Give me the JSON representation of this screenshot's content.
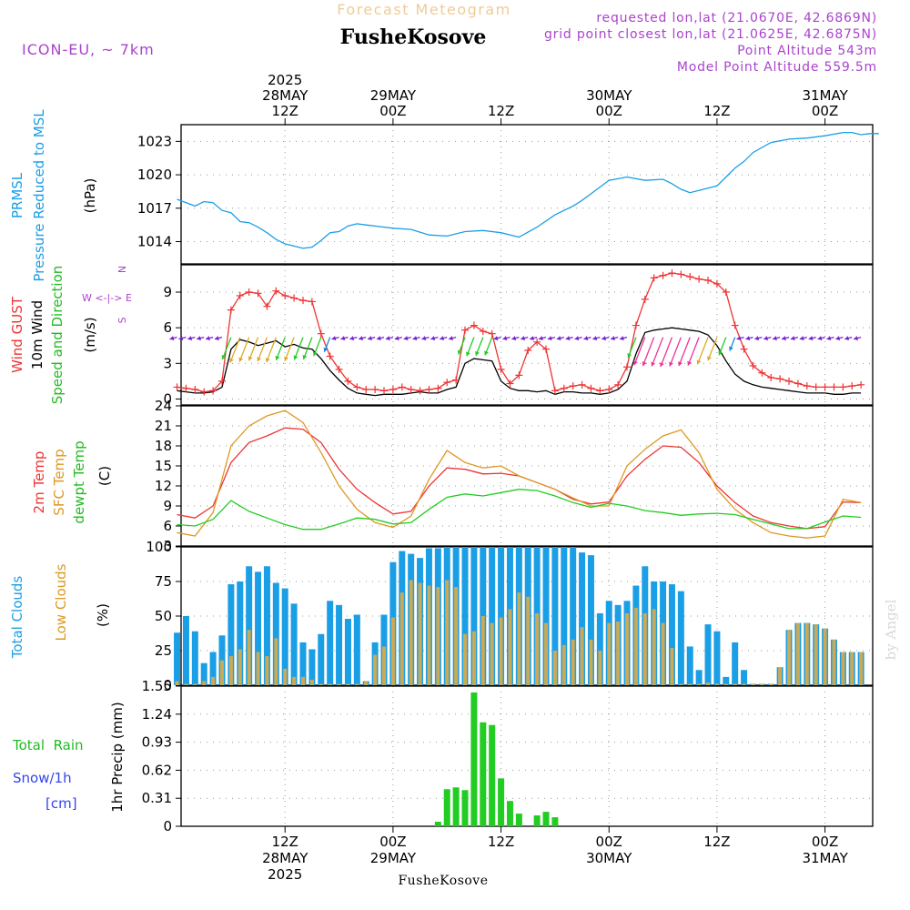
{
  "header": {
    "title": "Forecast Meteogram",
    "location": "FusheKosove",
    "model": "ICON-EU, ~ 7km",
    "requested": "requested lon,lat (21.0670E, 42.6869N)",
    "closest": "grid point closest lon,lat (21.0625E, 42.6875N)",
    "altitude": "Point Altitude 543m",
    "model_altitude": "Model Point Altitude 559.5m",
    "footer": "FusheKosove",
    "credit": "by Angel",
    "compass": [
      "N",
      "W <-|-> E",
      "S"
    ]
  },
  "colors": {
    "pressure": "#1a9ee6",
    "gust": "#ee3333",
    "wind": "#000000",
    "wind_label": "#22bb22",
    "temp": "#ee3333",
    "sfc_temp": "#dd9922",
    "dewpt": "#22cc22",
    "total_clouds": "#1a9ee6",
    "low_clouds": "#ccaa55",
    "rain": "#22cc22",
    "snow": "#3344ee",
    "meta": "#aa44cc",
    "title_faint": "#eecc99",
    "arrow_low": "#7722cc",
    "arrow_mid": "#22cc22",
    "arrow_high": "#ee3399",
    "arrow_orange": "#ddaa22",
    "arrow_blue": "#1a88dd"
  },
  "chart_data": [
    {
      "type": "line",
      "panel": "pressure",
      "ylabel_lines": [
        "PRMSL",
        "Pressure Reduced to MSL"
      ],
      "unit": "(hPa)",
      "yticks": [
        1014,
        1017,
        1020,
        1023
      ],
      "ylim": [
        1012,
        1024.5
      ],
      "x_hours": [
        0,
        2,
        3,
        4,
        5,
        6,
        7,
        8,
        9,
        10,
        11,
        12,
        13,
        14,
        15,
        16,
        17,
        18,
        19,
        20,
        21,
        22,
        24,
        26,
        28,
        30,
        32,
        34,
        36,
        38,
        40,
        42,
        44,
        45,
        46,
        47,
        48,
        50,
        52,
        54,
        55,
        56,
        57,
        58,
        60,
        61,
        62,
        63,
        64,
        66,
        68,
        70,
        72,
        74,
        75,
        76,
        77,
        78
      ],
      "series": [
        {
          "values": [
            1017.8,
            1017.2,
            1017.6,
            1017.5,
            1016.8,
            1016.6,
            1015.8,
            1015.7,
            1015.3,
            1014.8,
            1014.2,
            1013.8,
            1013.6,
            1013.4,
            1013.5,
            1014.1,
            1014.8,
            1014.9,
            1015.4,
            1015.6,
            1015.5,
            1015.4,
            1015.2,
            1015.1,
            1014.6,
            1014.5,
            1014.9,
            1015.0,
            1014.8,
            1014.4,
            1015.3,
            1016.4,
            1017.2,
            1017.7,
            1018.3,
            1018.9,
            1019.5,
            1019.8,
            1019.5,
            1019.6,
            1019.2,
            1018.7,
            1018.4,
            1018.6,
            1019.0,
            1019.8,
            1020.6,
            1021.2,
            1022.0,
            1022.9,
            1023.2,
            1023.3,
            1023.5,
            1023.8,
            1023.8,
            1023.6,
            1023.7,
            1023.7
          ]
        }
      ]
    },
    {
      "type": "line",
      "panel": "wind",
      "ylabel_lines": [
        "Wind GUST",
        "10m Wind",
        "Speed and Direction"
      ],
      "unit": "(m/s)",
      "yticks": [
        0,
        3,
        6,
        9
      ],
      "ylim": [
        -0.5,
        11.3
      ],
      "x_hours": [
        0,
        1,
        2,
        3,
        4,
        5,
        6,
        7,
        8,
        9,
        10,
        11,
        12,
        13,
        14,
        15,
        16,
        17,
        18,
        19,
        20,
        21,
        22,
        23,
        24,
        25,
        26,
        27,
        28,
        29,
        30,
        31,
        32,
        33,
        34,
        35,
        36,
        37,
        38,
        39,
        40,
        41,
        42,
        43,
        44,
        45,
        46,
        47,
        48,
        49,
        50,
        51,
        52,
        53,
        54,
        55,
        56,
        57,
        58,
        59,
        60,
        61,
        62,
        63,
        64,
        65,
        66,
        67,
        68,
        69,
        70,
        71,
        72,
        73,
        74,
        75,
        76
      ],
      "series": [
        {
          "name": "Wind GUST",
          "values": [
            1.0,
            0.9,
            0.8,
            0.6,
            0.7,
            1.5,
            7.5,
            8.7,
            9.0,
            8.9,
            7.8,
            9.1,
            8.7,
            8.5,
            8.3,
            8.2,
            5.5,
            3.6,
            2.5,
            1.5,
            1.0,
            0.8,
            0.8,
            0.7,
            0.8,
            1.0,
            0.8,
            0.7,
            0.8,
            0.9,
            1.4,
            1.6,
            5.8,
            6.2,
            5.7,
            5.5,
            2.5,
            1.3,
            2.0,
            4.1,
            4.8,
            4.2,
            0.7,
            0.9,
            1.1,
            1.2,
            0.9,
            0.7,
            0.8,
            1.2,
            2.7,
            6.2,
            8.4,
            10.2,
            10.4,
            10.6,
            10.5,
            10.3,
            10.1,
            10.0,
            9.7,
            9.0,
            6.2,
            4.2,
            2.8,
            2.2,
            1.8,
            1.7,
            1.5,
            1.3,
            1.1,
            1.0,
            1.0,
            1.0,
            1.0,
            1.1,
            1.2
          ]
        },
        {
          "name": "10m Wind",
          "values": [
            0.7,
            0.6,
            0.5,
            0.5,
            0.6,
            1.0,
            4.2,
            5.0,
            4.8,
            4.5,
            4.7,
            4.9,
            4.4,
            4.6,
            4.3,
            4.2,
            3.4,
            2.4,
            1.6,
            0.9,
            0.5,
            0.4,
            0.3,
            0.4,
            0.4,
            0.4,
            0.5,
            0.6,
            0.5,
            0.5,
            0.8,
            1.0,
            3.0,
            3.4,
            3.3,
            3.2,
            1.5,
            0.9,
            0.7,
            0.7,
            0.6,
            0.7,
            0.4,
            0.6,
            0.6,
            0.5,
            0.5,
            0.4,
            0.5,
            0.8,
            1.5,
            3.8,
            5.6,
            5.8,
            5.9,
            6.0,
            5.9,
            5.8,
            5.7,
            5.4,
            4.5,
            3.2,
            2.1,
            1.5,
            1.2,
            1.0,
            0.9,
            0.8,
            0.7,
            0.6,
            0.5,
            0.5,
            0.5,
            0.4,
            0.4,
            0.5,
            0.5
          ]
        }
      ]
    },
    {
      "type": "line",
      "panel": "temperature",
      "ylabel_lines": [
        "2m Temp",
        "SFC Temp",
        "dewpt Temp"
      ],
      "unit": "(C)",
      "yticks": [
        3,
        6,
        9,
        12,
        15,
        18,
        21,
        24
      ],
      "ylim": [
        3,
        24
      ],
      "x_hours": [
        0,
        2,
        4,
        6,
        8,
        10,
        12,
        14,
        16,
        18,
        20,
        22,
        24,
        26,
        28,
        30,
        32,
        34,
        36,
        38,
        40,
        42,
        44,
        46,
        48,
        50,
        52,
        54,
        56,
        58,
        60,
        62,
        64,
        66,
        68,
        70,
        72,
        74,
        76
      ],
      "series": [
        {
          "name": "2m Temp",
          "values": [
            7.7,
            7.2,
            9.0,
            15.5,
            18.5,
            19.5,
            20.7,
            20.5,
            18.5,
            14.5,
            11.5,
            9.5,
            7.8,
            8.2,
            12.0,
            14.7,
            14.5,
            13.8,
            13.9,
            13.5,
            12.5,
            11.5,
            10.0,
            9.3,
            9.6,
            13.5,
            16.0,
            18.0,
            17.8,
            15.5,
            12.0,
            9.5,
            7.5,
            6.5,
            6.0,
            5.6,
            5.9,
            9.6,
            9.5
          ]
        },
        {
          "name": "SFC Temp",
          "values": [
            5.0,
            4.5,
            8.0,
            18.0,
            21.0,
            22.5,
            23.3,
            21.5,
            17.0,
            12.0,
            8.5,
            6.5,
            5.8,
            7.5,
            13.0,
            17.3,
            15.5,
            14.7,
            15.0,
            13.5,
            12.5,
            11.5,
            10.2,
            9.0,
            9.0,
            15.0,
            17.5,
            19.5,
            20.4,
            17.0,
            11.5,
            8.5,
            6.5,
            5.0,
            4.5,
            4.2,
            4.5,
            10.0,
            9.5
          ]
        },
        {
          "name": "dewpt Temp",
          "values": [
            6.2,
            6.0,
            7.0,
            9.8,
            8.2,
            7.2,
            6.2,
            5.5,
            5.5,
            6.3,
            7.2,
            7.0,
            6.3,
            6.5,
            8.5,
            10.3,
            10.8,
            10.5,
            11.0,
            11.5,
            11.3,
            10.5,
            9.5,
            8.8,
            9.4,
            9.0,
            8.3,
            8.0,
            7.6,
            7.8,
            7.9,
            7.7,
            7.0,
            6.3,
            5.6,
            5.6,
            6.6,
            7.5,
            7.3
          ]
        }
      ]
    },
    {
      "type": "bar",
      "panel": "clouds",
      "ylabel_lines": [
        "Total Clouds",
        "Low Clouds"
      ],
      "unit": "(%)",
      "yticks": [
        0,
        25,
        50,
        75,
        100
      ],
      "ylim": [
        0,
        100
      ],
      "x_hours": [
        0,
        1,
        2,
        3,
        4,
        5,
        6,
        7,
        8,
        9,
        10,
        11,
        12,
        13,
        14,
        15,
        16,
        17,
        18,
        19,
        20,
        21,
        22,
        23,
        24,
        25,
        26,
        27,
        28,
        29,
        30,
        31,
        32,
        33,
        34,
        35,
        36,
        37,
        38,
        39,
        40,
        41,
        42,
        43,
        44,
        45,
        46,
        47,
        48,
        49,
        50,
        51,
        52,
        53,
        54,
        55,
        56,
        57,
        58,
        59,
        60,
        61,
        62,
        63,
        64,
        65,
        66,
        67,
        68,
        69,
        70,
        71,
        72,
        73,
        74,
        75,
        76
      ],
      "series": [
        {
          "name": "Total Clouds",
          "values": [
            38,
            50,
            39,
            16,
            24,
            36,
            73,
            75,
            86,
            82,
            86,
            74,
            70,
            59,
            31,
            26,
            37,
            61,
            58,
            48,
            51,
            3,
            31,
            51,
            89,
            97,
            95,
            92,
            99,
            99,
            100,
            100,
            100,
            100,
            100,
            100,
            100,
            100,
            100,
            100,
            100,
            100,
            100,
            100,
            100,
            96,
            94,
            52,
            61,
            58,
            61,
            72,
            86,
            75,
            75,
            73,
            68,
            28,
            11,
            44,
            39,
            6,
            31,
            11,
            1,
            1,
            1,
            13,
            40,
            45,
            45,
            44,
            41,
            33,
            24,
            24,
            24
          ]
        },
        {
          "name": "Low Clouds",
          "values": [
            3,
            1,
            1,
            3,
            6,
            18,
            21,
            26,
            40,
            24,
            21,
            34,
            12,
            6,
            6,
            4,
            1,
            1,
            1,
            1,
            1,
            3,
            22,
            28,
            49,
            67,
            76,
            74,
            72,
            71,
            76,
            71,
            37,
            39,
            50,
            45,
            49,
            55,
            67,
            64,
            52,
            45,
            25,
            29,
            33,
            42,
            33,
            25,
            45,
            46,
            52,
            56,
            52,
            55,
            45,
            27,
            1,
            1,
            1,
            2,
            1,
            1,
            1,
            1,
            1,
            1,
            1,
            13,
            40,
            45,
            45,
            44,
            41,
            33,
            24,
            24,
            24
          ]
        }
      ]
    },
    {
      "type": "bar",
      "panel": "precip",
      "ylabel_lines": [
        "Total  Rain",
        "Snow/1h",
        "[cm]"
      ],
      "unit": "1hr Precip (mm)",
      "yticks": [
        0,
        0.31,
        0.62,
        0.93,
        1.24,
        1.55
      ],
      "ylim": [
        0,
        1.55
      ],
      "x_hours": [
        29,
        30,
        31,
        32,
        33,
        34,
        35,
        36,
        37,
        38,
        39,
        40,
        41,
        42
      ],
      "series": [
        {
          "name": "Total Rain",
          "values": [
            0.05,
            0.41,
            0.43,
            0.4,
            1.48,
            1.15,
            1.12,
            0.53,
            0.28,
            0.14,
            0.0,
            0.12,
            0.16,
            0.1
          ]
        }
      ]
    }
  ],
  "time_axis": {
    "top_labels": [
      {
        "h": 12,
        "lines": [
          "2025",
          "28MAY",
          "12Z"
        ]
      },
      {
        "h": 24,
        "lines": [
          "29MAY",
          "00Z"
        ]
      },
      {
        "h": 36,
        "lines": [
          "12Z"
        ]
      },
      {
        "h": 48,
        "lines": [
          "30MAY",
          "00Z"
        ]
      },
      {
        "h": 60,
        "lines": [
          "12Z"
        ]
      },
      {
        "h": 72,
        "lines": [
          "31MAY",
          "00Z"
        ]
      }
    ],
    "bottom_labels": [
      {
        "h": 12,
        "lines": [
          "12Z",
          "28MAY",
          "2025"
        ]
      },
      {
        "h": 24,
        "lines": [
          "00Z",
          "29MAY"
        ]
      },
      {
        "h": 36,
        "lines": [
          "12Z"
        ]
      },
      {
        "h": 48,
        "lines": [
          "00Z",
          "30MAY"
        ]
      },
      {
        "h": 60,
        "lines": [
          "12Z"
        ]
      },
      {
        "h": 72,
        "lines": [
          "00Z",
          "31MAY"
        ]
      }
    ]
  }
}
